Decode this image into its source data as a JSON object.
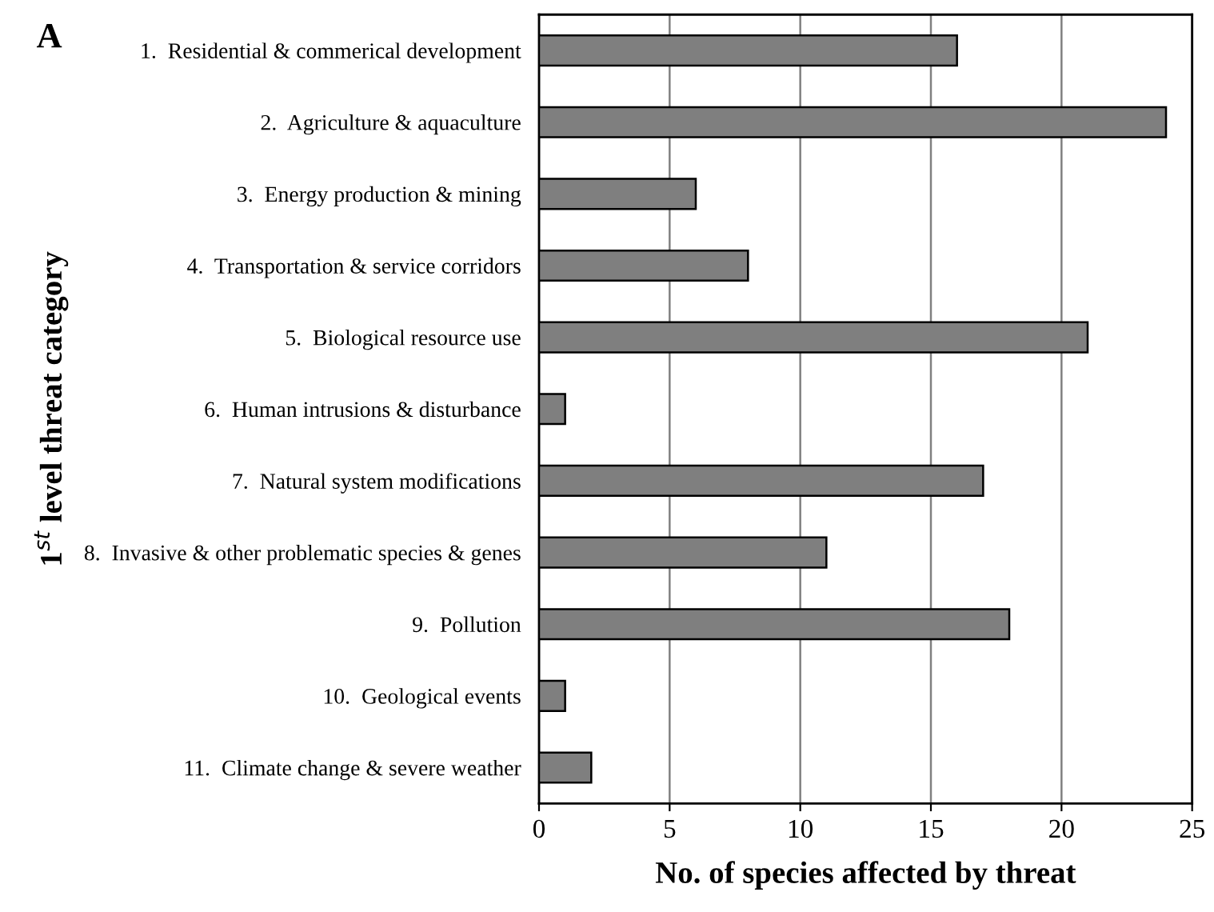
{
  "chart_data": {
    "type": "bar",
    "orientation": "horizontal",
    "title": "A",
    "xlabel": "No. of species affected by threat",
    "ylabel": "1$^{st}$ level threat category",
    "categories": [
      "1.  Residential & commerical development",
      "2.  Agriculture & aquaculture",
      "3.  Energy production & mining",
      "4.  Transportation & service corridors",
      "5.  Biological resource use",
      "6.  Human intrusions & disturbance",
      "7.  Natural system modifications",
      "8.  Invasive & other problematic species & genes",
      "9.  Pollution",
      "10.  Geological events",
      "11.  Climate change & severe weather"
    ],
    "values": [
      16,
      24,
      6,
      8,
      21,
      1,
      17,
      11,
      18,
      1,
      2
    ],
    "color": "#7f7f7f",
    "xlim": [
      0,
      25
    ],
    "xticks": [
      0,
      5,
      10,
      15,
      20,
      25
    ],
    "grid": "x",
    "legend": false
  }
}
